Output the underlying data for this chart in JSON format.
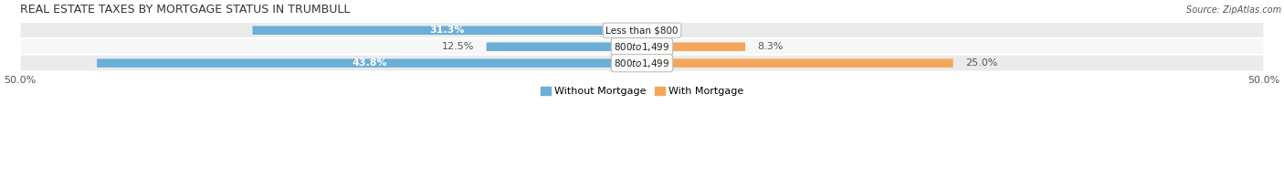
{
  "title": "Real Estate Taxes by Mortgage Status in Trumbull",
  "source": "Source: ZipAtlas.com",
  "categories": [
    "Less than $800",
    "$800 to $1,499",
    "$800 to $1,499"
  ],
  "without_mortgage": [
    31.3,
    12.5,
    43.8
  ],
  "with_mortgage": [
    0.0,
    8.3,
    25.0
  ],
  "color_without": "#6baed6",
  "color_with": "#f4a75a",
  "color_without_light": "#9ecae1",
  "color_with_light": "#fdd0a2",
  "xlim_left": -50,
  "xlim_right": 50,
  "legend_labels": [
    "Without Mortgage",
    "With Mortgage"
  ],
  "title_fontsize": 9,
  "label_fontsize": 8,
  "tick_fontsize": 8,
  "bar_height": 0.52,
  "row_colors": [
    "#ebebeb",
    "#f7f7f7",
    "#ebebeb"
  ],
  "title_color": "#333333",
  "text_color": "#444444",
  "label_color_dark": "#555555"
}
